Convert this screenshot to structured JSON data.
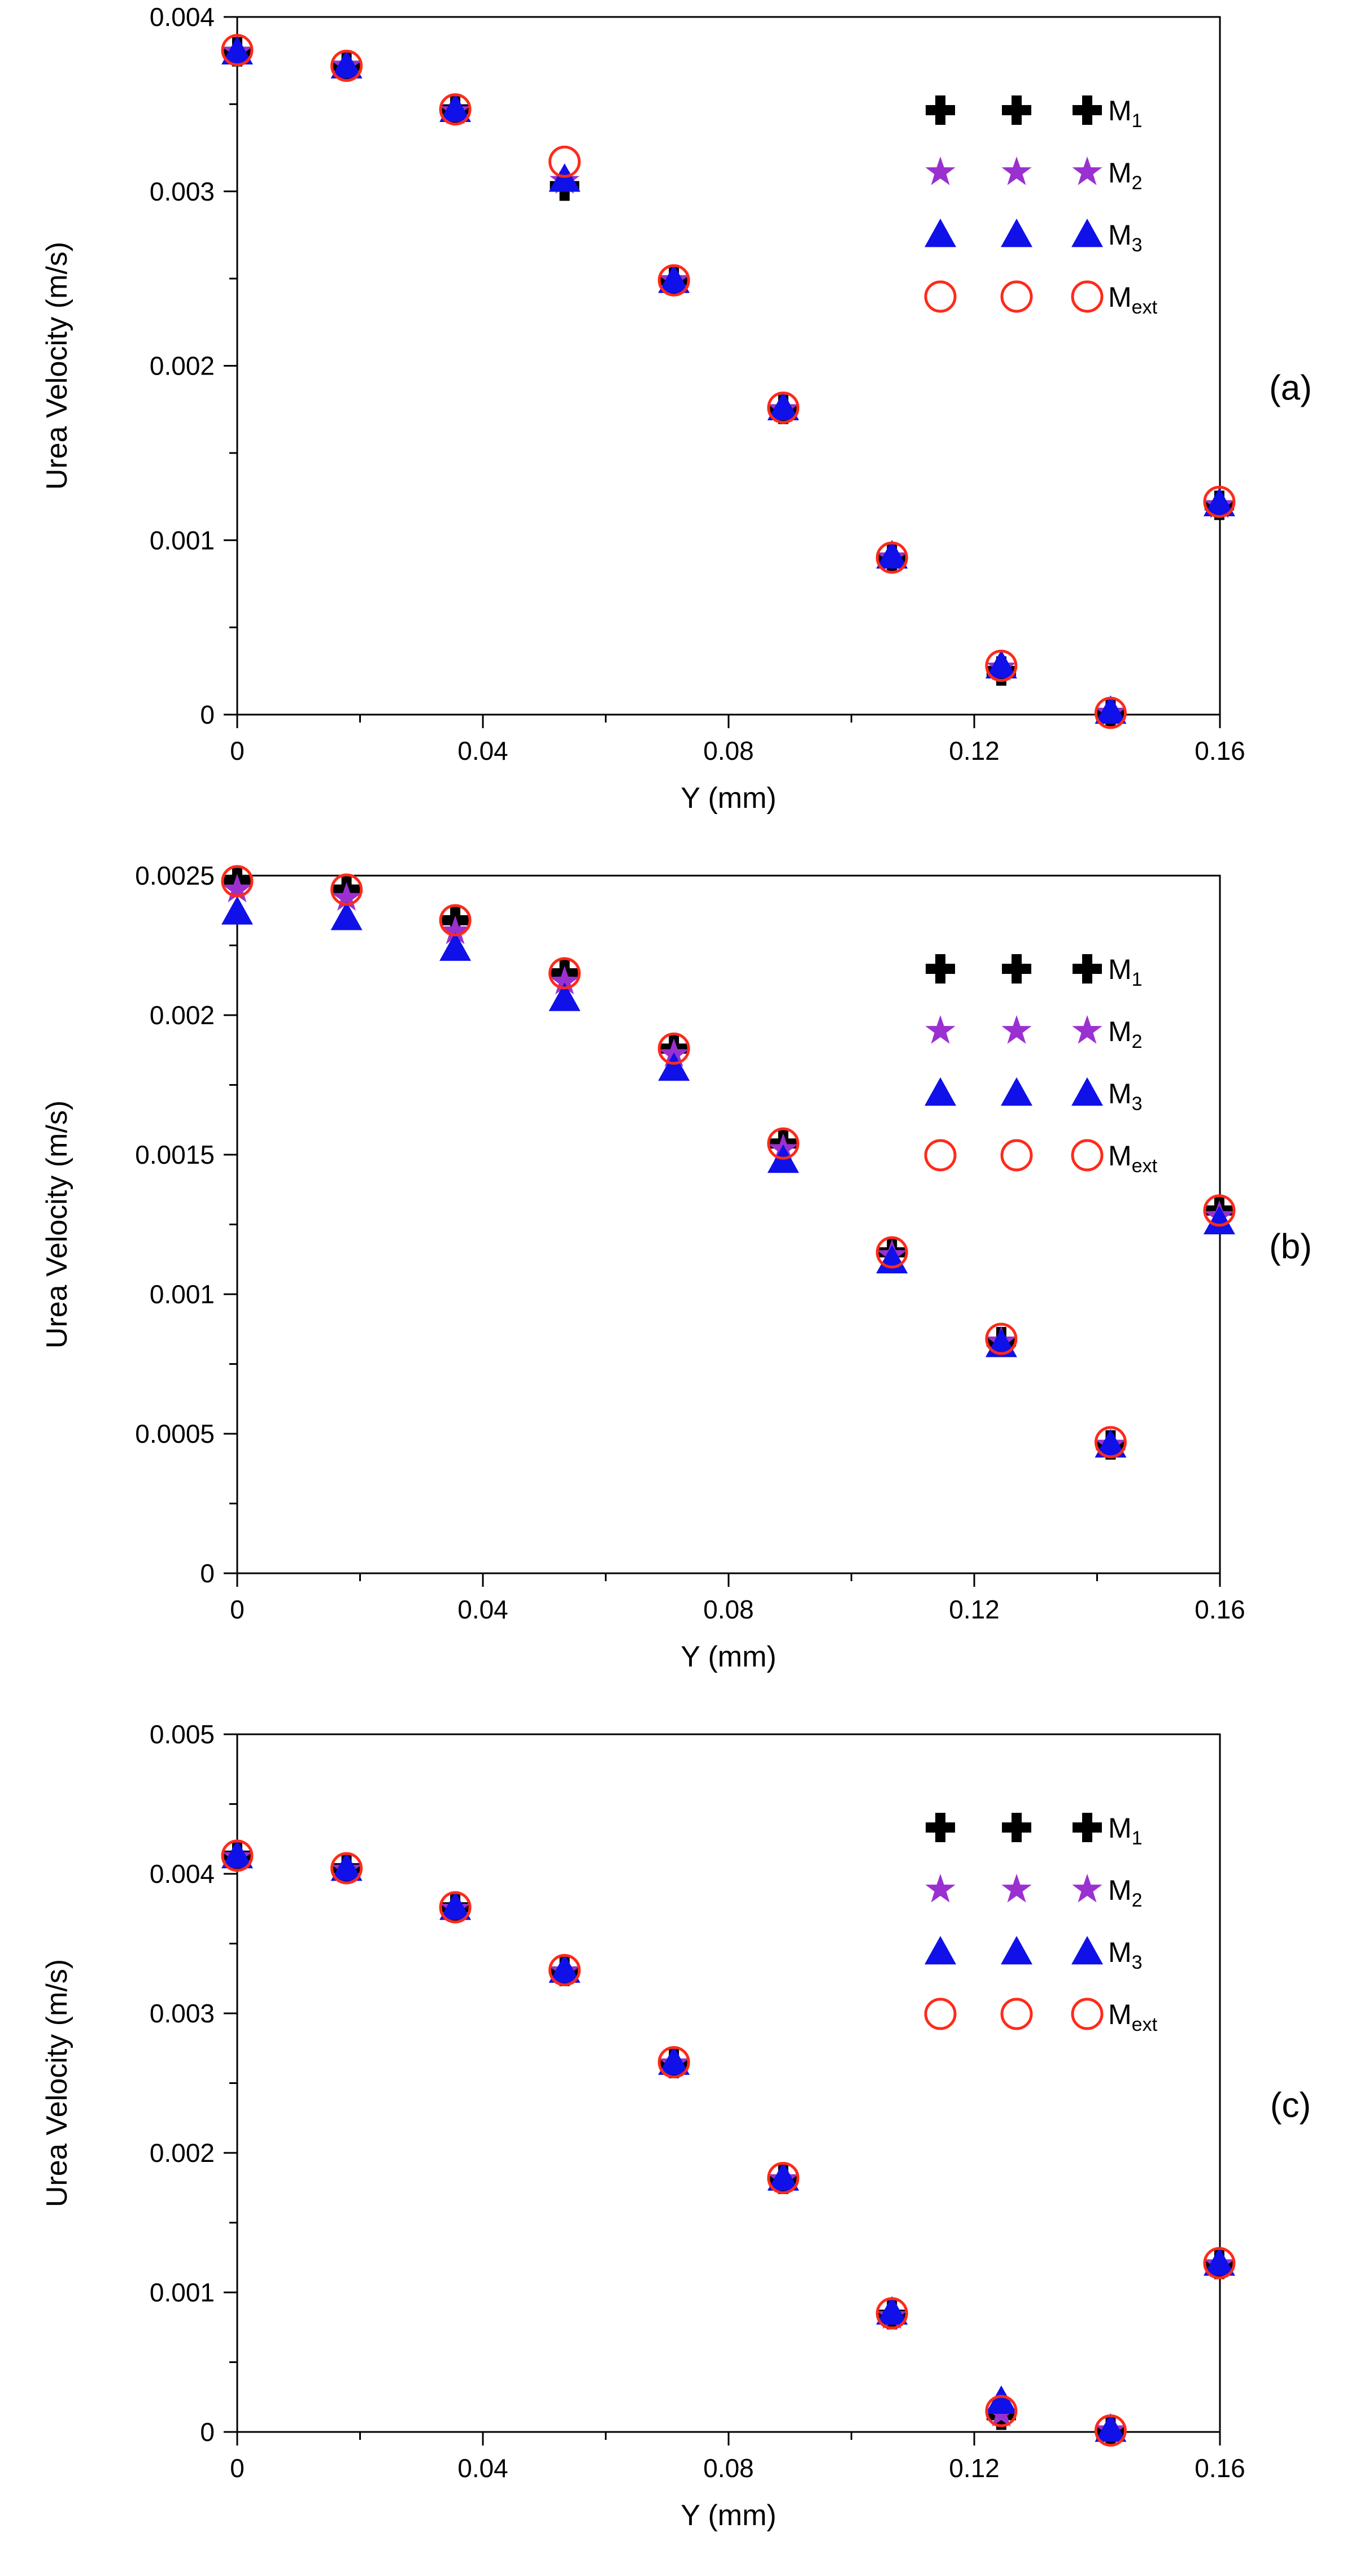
{
  "colors": {
    "M1": "#000000",
    "M2": "#9B30D0",
    "M3": "#1010E8",
    "Mext": "#FF2A1A"
  },
  "legend": [
    {
      "key": "M1",
      "base": "M",
      "sub": "1",
      "marker": "plus-icon"
    },
    {
      "key": "M2",
      "base": "M",
      "sub": "2",
      "marker": "star-icon"
    },
    {
      "key": "M3",
      "base": "M",
      "sub": "3",
      "marker": "triangle-icon"
    },
    {
      "key": "Mext",
      "base": "M",
      "sub": "ext",
      "marker": "circle-icon"
    }
  ],
  "chart_data": [
    {
      "type": "scatter",
      "label": "(a)",
      "xlabel": "Y (mm)",
      "ylabel": "Urea Velocity (m/s)",
      "xlim": [
        0,
        0.16
      ],
      "ylim": [
        0,
        0.004
      ],
      "xticks": [
        0,
        0.04,
        0.08,
        0.12,
        0.16
      ],
      "xtick_labels": [
        "0",
        "0.04",
        "0.08",
        "0.12",
        "0.16"
      ],
      "yticks": [
        0,
        0.001,
        0.002,
        0.003,
        0.004
      ],
      "ytick_labels": [
        "0",
        "0.001",
        "0.002",
        "0.003",
        "0.004"
      ],
      "x": [
        0,
        0.0178,
        0.0355,
        0.0533,
        0.0711,
        0.0889,
        0.1066,
        0.1244,
        0.1422,
        0.1599
      ],
      "series": [
        {
          "name": "M1",
          "values": [
            0.0038,
            0.00372,
            0.00347,
            0.00303,
            0.00249,
            0.00175,
            0.0009,
            0.00025,
            1e-05,
            0.0012
          ]
        },
        {
          "name": "M2",
          "values": [
            0.0038,
            0.00372,
            0.00346,
            0.00306,
            0.00249,
            0.00175,
            0.0009,
            0.00027,
            1e-05,
            0.0012
          ]
        },
        {
          "name": "M3",
          "values": [
            0.0038,
            0.00372,
            0.00347,
            0.00307,
            0.00249,
            0.00176,
            0.00091,
            0.00028,
            2e-05,
            0.00121
          ]
        },
        {
          "name": "Mext",
          "values": [
            0.00381,
            0.00372,
            0.00347,
            0.00317,
            0.00249,
            0.00176,
            0.0009,
            0.00028,
            1e-05,
            0.00122
          ]
        }
      ]
    },
    {
      "type": "scatter",
      "label": "(b)",
      "xlabel": "Y (mm)",
      "ylabel": "Urea Velocity (m/s)",
      "xlim": [
        0,
        0.16
      ],
      "ylim": [
        0,
        0.0025
      ],
      "xticks": [
        0,
        0.04,
        0.08,
        0.12,
        0.16
      ],
      "xtick_labels": [
        "0",
        "0.04",
        "0.08",
        "0.12",
        "0.16"
      ],
      "yticks": [
        0,
        0.0005,
        0.001,
        0.0015,
        0.002,
        0.0025
      ],
      "ytick_labels": [
        "0",
        "0.0005",
        "0.001",
        "0.0015",
        "0.002",
        "0.0025"
      ],
      "x": [
        0,
        0.0178,
        0.0355,
        0.0533,
        0.0711,
        0.0889,
        0.1066,
        0.1244,
        0.1422,
        0.1599
      ],
      "series": [
        {
          "name": "M1",
          "values": [
            0.00248,
            0.00245,
            0.00234,
            0.00215,
            0.00188,
            0.00154,
            0.00115,
            0.00083,
            0.00046,
            0.0013
          ]
        },
        {
          "name": "M2",
          "values": [
            0.00245,
            0.00242,
            0.0023,
            0.00212,
            0.00186,
            0.00152,
            0.00114,
            0.00083,
            0.00046,
            0.00128
          ]
        },
        {
          "name": "M3",
          "values": [
            0.00237,
            0.00235,
            0.00224,
            0.00206,
            0.00181,
            0.00148,
            0.00112,
            0.00082,
            0.00046,
            0.00126
          ]
        },
        {
          "name": "Mext",
          "values": [
            0.00248,
            0.00245,
            0.00234,
            0.00215,
            0.00188,
            0.00154,
            0.00115,
            0.00084,
            0.00047,
            0.0013
          ]
        }
      ]
    },
    {
      "type": "scatter",
      "label": "(c)",
      "xlabel": "Y (mm)",
      "ylabel": "Urea Velocity (m/s)",
      "xlim": [
        0,
        0.16
      ],
      "ylim": [
        0,
        0.005
      ],
      "xticks": [
        0,
        0.04,
        0.08,
        0.12,
        0.16
      ],
      "xtick_labels": [
        "0",
        "0.04",
        "0.08",
        "0.12",
        "0.16"
      ],
      "yticks": [
        0,
        0.001,
        0.002,
        0.003,
        0.004,
        0.005
      ],
      "ytick_labels": [
        "0",
        "0.001",
        "0.002",
        "0.003",
        "0.004",
        "0.005"
      ],
      "x": [
        0,
        0.0178,
        0.0355,
        0.0533,
        0.0711,
        0.0889,
        0.1066,
        0.1244,
        0.1422,
        0.1599
      ],
      "series": [
        {
          "name": "M1",
          "values": [
            0.00413,
            0.00404,
            0.00376,
            0.0033,
            0.00264,
            0.00181,
            0.00084,
            0.00012,
            1e-05,
            0.0012
          ]
        },
        {
          "name": "M2",
          "values": [
            0.00412,
            0.00403,
            0.00375,
            0.0033,
            0.00264,
            0.00181,
            0.00083,
            0.00013,
            1e-05,
            0.0012
          ]
        },
        {
          "name": "M3",
          "values": [
            0.00413,
            0.00404,
            0.00376,
            0.00331,
            0.00265,
            0.00182,
            0.00086,
            0.00022,
            2e-05,
            0.00121
          ]
        },
        {
          "name": "Mext",
          "values": [
            0.00413,
            0.00404,
            0.00376,
            0.00331,
            0.00265,
            0.00182,
            0.00085,
            0.00015,
            1e-05,
            0.00121
          ]
        }
      ]
    }
  ]
}
